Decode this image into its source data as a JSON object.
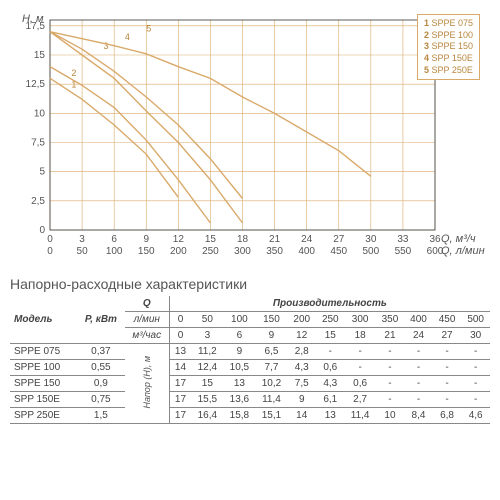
{
  "chart": {
    "type": "line",
    "background_color": "#ffffff",
    "grid_color": "#d9a96a",
    "axis_color": "#333333",
    "curve_color": "#d9a96a",
    "line_width": 1.4,
    "y_label": "H, м",
    "x_label_top": "Q, м³/ч",
    "x_label_bottom": "Q, л/мин",
    "y_ticks": [
      0,
      2.5,
      5,
      7.5,
      10,
      12.5,
      15,
      17.5
    ],
    "y_lim": [
      0,
      18
    ],
    "x_ticks_top": [
      0,
      3,
      6,
      9,
      12,
      15,
      18,
      21,
      24,
      27,
      30,
      33,
      36
    ],
    "x_ticks_bottom": [
      0,
      50,
      100,
      150,
      200,
      250,
      300,
      350,
      400,
      450,
      500,
      550,
      600
    ],
    "x_lim": [
      0,
      36
    ],
    "legend": [
      {
        "num": "1",
        "label": "SPPE 075"
      },
      {
        "num": "2",
        "label": "SPPE 100"
      },
      {
        "num": "3",
        "label": "SPPE 150"
      },
      {
        "num": "4",
        "label": "SPP 150E"
      },
      {
        "num": "5",
        "label": "SPP 250E"
      }
    ],
    "series": [
      {
        "name": "SPPE 075",
        "num": "1",
        "label_xy": [
          2,
          12.2
        ],
        "points": [
          [
            0,
            13
          ],
          [
            3,
            11.2
          ],
          [
            6,
            9
          ],
          [
            9,
            6.5
          ],
          [
            12,
            2.8
          ]
        ]
      },
      {
        "name": "SPPE 100",
        "num": "2",
        "label_xy": [
          2,
          13.2
        ],
        "points": [
          [
            0,
            14
          ],
          [
            3,
            12.4
          ],
          [
            6,
            10.5
          ],
          [
            9,
            7.7
          ],
          [
            12,
            4.3
          ],
          [
            15,
            0.6
          ]
        ]
      },
      {
        "name": "SPPE 150",
        "num": "3",
        "label_xy": [
          5,
          15.5
        ],
        "points": [
          [
            0,
            17
          ],
          [
            3,
            15
          ],
          [
            6,
            13
          ],
          [
            9,
            10.2
          ],
          [
            12,
            7.5
          ],
          [
            15,
            4.3
          ],
          [
            18,
            0.6
          ]
        ]
      },
      {
        "name": "SPP 150E",
        "num": "4",
        "label_xy": [
          7,
          16.3
        ],
        "points": [
          [
            0,
            17
          ],
          [
            3,
            15.5
          ],
          [
            6,
            13.6
          ],
          [
            9,
            11.4
          ],
          [
            12,
            9
          ],
          [
            15,
            6.1
          ],
          [
            18,
            2.7
          ]
        ]
      },
      {
        "name": "SPP 250E",
        "num": "5",
        "label_xy": [
          9,
          17
        ],
        "points": [
          [
            0,
            17
          ],
          [
            3,
            16.4
          ],
          [
            6,
            15.8
          ],
          [
            9,
            15.1
          ],
          [
            12,
            14
          ],
          [
            15,
            13
          ],
          [
            18,
            11.4
          ],
          [
            21,
            10
          ],
          [
            24,
            8.4
          ],
          [
            27,
            6.8
          ],
          [
            30,
            4.6
          ]
        ]
      }
    ]
  },
  "section_title": "Напорно-расходные характеристики",
  "table": {
    "header": {
      "model": "Модель",
      "power": "P, кВт",
      "q": "Q",
      "perf": "Производительность",
      "lpm": "л/мин",
      "m3h": "м³/час",
      "napor": "Напор (Н), м"
    },
    "q_lpm": [
      0,
      50,
      100,
      150,
      200,
      250,
      300,
      350,
      400,
      450,
      500
    ],
    "q_m3h": [
      0,
      3,
      6,
      9,
      12,
      15,
      18,
      21,
      24,
      27,
      30
    ],
    "rows": [
      {
        "model": "SPPE 075",
        "power": "0,37",
        "values": [
          "13",
          "11,2",
          "9",
          "6,5",
          "2,8",
          "-",
          "-",
          "-",
          "-",
          "-",
          "-"
        ]
      },
      {
        "model": "SPPE 100",
        "power": "0,55",
        "values": [
          "14",
          "12,4",
          "10,5",
          "7,7",
          "4,3",
          "0,6",
          "-",
          "-",
          "-",
          "-",
          "-"
        ]
      },
      {
        "model": "SPPE 150",
        "power": "0,9",
        "values": [
          "17",
          "15",
          "13",
          "10,2",
          "7,5",
          "4,3",
          "0,6",
          "-",
          "-",
          "-",
          "-"
        ]
      },
      {
        "model": "SPP 150E",
        "power": "0,75",
        "values": [
          "17",
          "15,5",
          "13,6",
          "11,4",
          "9",
          "6,1",
          "2,7",
          "-",
          "-",
          "-",
          "-"
        ]
      },
      {
        "model": "SPP 250E",
        "power": "1,5",
        "values": [
          "17",
          "16,4",
          "15,8",
          "15,1",
          "14",
          "13",
          "11,4",
          "10",
          "8,4",
          "6,8",
          "4,6"
        ]
      }
    ]
  }
}
